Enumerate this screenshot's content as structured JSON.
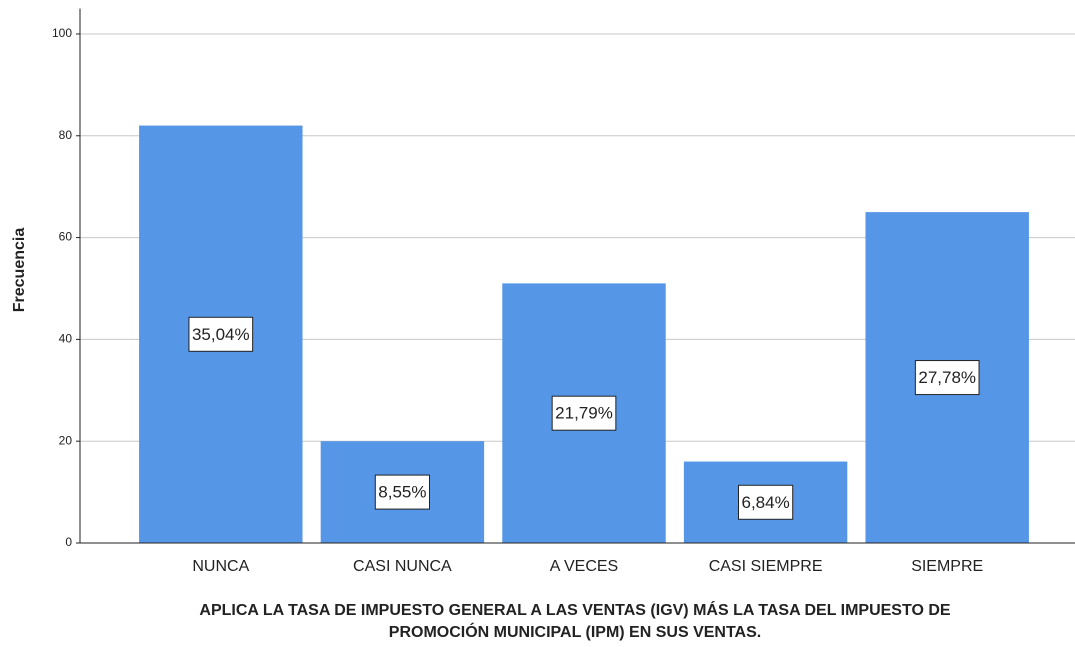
{
  "chart_data": {
    "type": "bar",
    "xlabel": [
      "APLICA LA TASA DE IMPUESTO GENERAL A LAS VENTAS (IGV) MÁS LA TASA DEL IMPUESTO DE",
      "PROMOCIÓN MUNICIPAL (IPM) EN SUS VENTAS."
    ],
    "ylabel": "Frecuencia",
    "categories": [
      "NUNCA",
      "CASI NUNCA",
      "A VECES",
      "CASI SIEMPRE",
      "SIEMPRE"
    ],
    "values": [
      82,
      20,
      51,
      16,
      65
    ],
    "percent_labels": [
      "35,04%",
      "8,55%",
      "21,79%",
      "6,84%",
      "27,78%"
    ],
    "color": "#5596e6",
    "ylim": [
      0,
      105
    ],
    "yticks": [
      0,
      20,
      40,
      60,
      80,
      100
    ],
    "grid": true
  }
}
